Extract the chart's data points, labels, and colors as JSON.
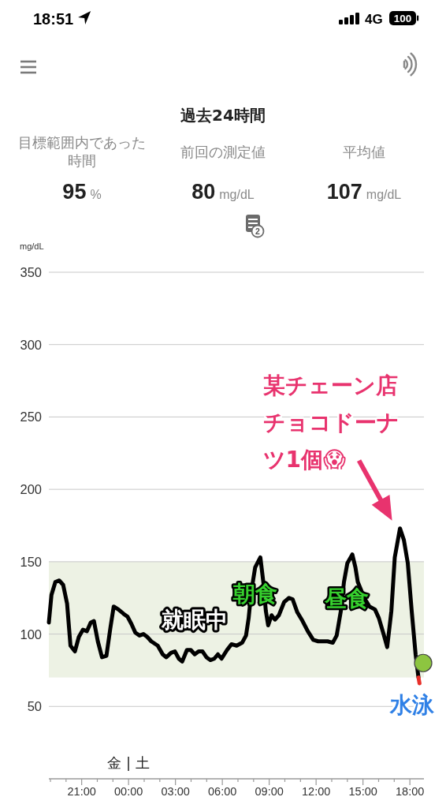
{
  "chart_data": [
    {
      "type": "other",
      "annotations": [
        "18:51",
        "4G",
        "100"
      ]
    },
    {
      "type": "other",
      "title": "過去24時間",
      "annotations": [
        "目標範囲内であった時間",
        "95 %",
        "前回の測定値",
        "80 mg/dL",
        "平均値",
        "107 mg/dL",
        "2"
      ]
    },
    {
      "type": "line",
      "ylabel": "mg/dL",
      "xlim": [
        "--12-01T18:54",
        "--12-02T18:54"
      ],
      "ylim": [
        0,
        350
      ],
      "xticks": [
        {
          "value": "--12-01T19:00",
          "label": null
        },
        {
          "value": "--12-01T20:00",
          "label": null
        },
        {
          "value": "--12-01T21:00",
          "label": "21:00"
        },
        {
          "value": "--12-01T22:00",
          "label": null
        },
        {
          "value": "--12-01T23:00",
          "label": null
        },
        {
          "value": "--12-02T00:00",
          "label": "00:00"
        },
        {
          "value": "--12-02T01:00",
          "label": null
        },
        {
          "value": "--12-02T02:00",
          "label": null
        },
        {
          "value": "--12-02T03:00",
          "label": "03:00"
        },
        {
          "value": "--12-02T04:00",
          "label": null
        },
        {
          "value": "--12-02T05:00",
          "label": null
        },
        {
          "value": "--12-02T06:00",
          "label": "06:00"
        },
        {
          "value": "--12-02T07:00",
          "label": null
        },
        {
          "value": "--12-02T08:00",
          "label": null
        },
        {
          "value": "--12-02T09:00",
          "label": "09:00"
        },
        {
          "value": "--12-02T10:00",
          "label": null
        },
        {
          "value": "--12-02T11:00",
          "label": null
        },
        {
          "value": "--12-02T12:00",
          "label": "12:00"
        },
        {
          "value": "--12-02T13:00",
          "label": null
        },
        {
          "value": "--12-02T14:00",
          "label": null
        },
        {
          "value": "--12-02T15:00",
          "label": "15:00"
        },
        {
          "value": "--12-02T16:00",
          "label": null
        },
        {
          "value": "--12-02T17:00",
          "label": null
        },
        {
          "value": "--12-02T18:00",
          "label": "18:00"
        }
      ],
      "yticks": [
        50,
        100,
        150,
        200,
        250,
        300,
        350
      ],
      "grid": "y",
      "bands": [
        {
          "axis": "y",
          "from": 70,
          "to": 150,
          "color": "#edf2e4"
        }
      ],
      "series": [
        {
          "color": "#000000",
          "x": [
            "--12-01T18:54",
            "--12-01T19:04",
            "--12-01T19:19",
            "--12-01T19:34",
            "--12-01T19:49",
            "--12-01T20:04",
            "--12-01T20:17",
            "--12-01T20:34",
            "--12-01T20:49",
            "--12-01T21:05",
            "--12-01T21:20",
            "--12-01T21:35",
            "--12-01T21:47",
            "--12-01T22:02",
            "--12-01T22:18",
            "--12-01T22:35",
            "--12-01T22:50",
            "--12-01T23:03",
            "--12-01T23:21",
            "--12-01T23:41",
            "--12-01T23:56",
            "--12-02T00:11",
            "--12-02T00:26",
            "--12-02T00:42",
            "--12-02T00:57",
            "--12-02T01:12",
            "--12-02T01:27",
            "--12-02T01:52",
            "--12-02T02:11",
            "--12-02T02:25",
            "--12-02T02:43",
            "--12-02T02:58",
            "--12-02T03:13",
            "--12-02T03:26",
            "--12-02T03:44",
            "--12-02T03:59",
            "--12-02T04:14",
            "--12-02T04:29",
            "--12-02T04:44",
            "--12-02T04:59",
            "--12-02T05:14",
            "--12-02T05:29",
            "--12-02T05:43",
            "--12-02T05:57",
            "--12-02T06:18",
            "--12-02T06:35",
            "--12-02T06:55",
            "--12-02T07:16",
            "--12-02T07:31",
            "--12-02T07:41",
            "--12-02T07:51",
            "--12-02T08:06",
            "--12-02T08:26",
            "--12-02T08:38",
            "--12-02T08:47",
            "--12-02T08:56",
            "--12-02T09:09",
            "--12-02T09:22",
            "--12-02T09:37",
            "--12-02T09:57",
            "--12-02T10:16",
            "--12-02T10:30",
            "--12-02T10:48",
            "--12-02T11:08",
            "--12-02T11:28",
            "--12-02T11:49",
            "--12-02T12:08",
            "--12-02T12:29",
            "--12-02T12:44",
            "--12-02T13:04",
            "--12-02T13:19",
            "--12-02T13:35",
            "--12-02T13:47",
            "--12-02T14:00",
            "--12-02T14:19",
            "--12-02T14:31",
            "--12-02T14:40",
            "--12-02T15:05",
            "--12-02T15:25",
            "--12-02T15:46",
            "--12-02T16:01",
            "--12-02T16:19",
            "--12-02T16:33",
            "--12-02T16:49",
            "--12-02T17:02",
            "--12-02T17:22",
            "--12-02T17:37",
            "--12-02T17:52",
            "--12-02T18:07",
            "--12-02T18:22",
            "--12-02T18:33"
          ],
          "values": [
            108,
            127,
            136,
            137,
            134,
            121,
            92,
            88,
            98,
            103,
            102,
            108,
            109,
            95,
            84,
            85,
            104,
            119,
            117,
            114,
            112,
            107,
            101,
            99,
            100,
            98,
            95,
            92,
            86,
            84,
            87,
            88,
            83,
            81,
            89,
            89,
            86,
            88,
            88,
            84,
            82,
            83,
            86,
            83,
            89,
            93,
            92,
            94,
            99,
            111,
            129,
            146,
            153,
            135,
            116,
            106,
            113,
            110,
            113,
            122,
            125,
            124,
            115,
            109,
            102,
            96,
            95,
            95,
            95,
            94,
            99,
            116,
            136,
            149,
            155,
            146,
            136,
            125,
            119,
            117,
            111,
            100,
            91,
            116,
            153,
            173,
            165,
            149,
            116,
            86,
            70
          ]
        },
        {
          "color": "#e8302a",
          "x": [
            "--12-02T18:33",
            "--12-02T18:37"
          ],
          "values": [
            70,
            66
          ]
        },
        {
          "type": "scatter",
          "color": "#8dc540",
          "x": [
            "--12-02T18:51"
          ],
          "values": [
            80
          ]
        }
      ],
      "annotations": [
        {
          "text": "某チェーン店チョコドーナツ1個😱",
          "x": "--12-02T17:22",
          "y": 173
        },
        "就眠中",
        {
          "text": "朝食",
          "x": "--12-02T08:07",
          "y": 128
        },
        {
          "text": "昼食",
          "x": "--12-02T13:58",
          "y": 125
        },
        "水泳",
        "金 | 土"
      ]
    }
  ]
}
